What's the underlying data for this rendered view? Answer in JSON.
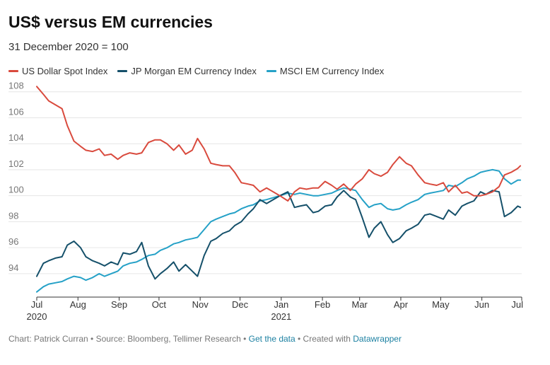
{
  "title": "US$ versus EM currencies",
  "subtitle": "31 December 2020 = 100",
  "footer": {
    "prefix": "Chart: Patrick Curran • Source: Bloomberg, Tellimer Research • ",
    "get_data": "Get the data",
    "middle": " • Created with ",
    "tool": "Datawrapper"
  },
  "colors": {
    "usd": "#d94a3d",
    "jpm": "#15506a",
    "msci": "#25a1c7",
    "grid": "#e6e6e6",
    "axis": "#333333"
  },
  "chart_data": {
    "type": "line",
    "x_axis": {
      "ticks": [
        {
          "date": "2020-07",
          "label": "Jul",
          "sub": "2020"
        },
        {
          "date": "2020-08",
          "label": "Aug"
        },
        {
          "date": "2020-09",
          "label": "Sep"
        },
        {
          "date": "2020-10",
          "label": "Oct"
        },
        {
          "date": "2020-11",
          "label": "Nov"
        },
        {
          "date": "2020-12",
          "label": "Dec"
        },
        {
          "date": "2021-01",
          "label": "Jan",
          "sub": "2021"
        },
        {
          "date": "2021-02",
          "label": "Feb"
        },
        {
          "date": "2021-03",
          "label": "Mar"
        },
        {
          "date": "2021-04",
          "label": "Apr"
        },
        {
          "date": "2021-05",
          "label": "May"
        },
        {
          "date": "2021-06",
          "label": "Jun"
        },
        {
          "date": "2021-07",
          "label": "Jul"
        }
      ]
    },
    "y_axis": {
      "ticks": [
        94,
        96,
        98,
        100,
        102,
        104,
        106,
        108
      ],
      "ylim": [
        92.2,
        108.8
      ]
    },
    "grid": true,
    "legend_position": "top",
    "series": [
      {
        "name": "US Dollar Spot Index",
        "color": "#d94a3d",
        "points": [
          [
            "2020-07-01",
            108.4
          ],
          [
            "2020-07-06",
            107.8
          ],
          [
            "2020-07-10",
            107.3
          ],
          [
            "2020-07-15",
            107.0
          ],
          [
            "2020-07-20",
            106.7
          ],
          [
            "2020-07-24",
            105.4
          ],
          [
            "2020-07-29",
            104.2
          ],
          [
            "2020-08-03",
            103.8
          ],
          [
            "2020-08-07",
            103.5
          ],
          [
            "2020-08-12",
            103.4
          ],
          [
            "2020-08-17",
            103.6
          ],
          [
            "2020-08-21",
            103.1
          ],
          [
            "2020-08-26",
            103.2
          ],
          [
            "2020-08-31",
            102.8
          ],
          [
            "2020-09-04",
            103.1
          ],
          [
            "2020-09-09",
            103.3
          ],
          [
            "2020-09-14",
            103.2
          ],
          [
            "2020-09-18",
            103.3
          ],
          [
            "2020-09-23",
            104.1
          ],
          [
            "2020-09-28",
            104.3
          ],
          [
            "2020-10-02",
            104.3
          ],
          [
            "2020-10-07",
            104.0
          ],
          [
            "2020-10-12",
            103.5
          ],
          [
            "2020-10-16",
            103.9
          ],
          [
            "2020-10-21",
            103.2
          ],
          [
            "2020-10-26",
            103.5
          ],
          [
            "2020-10-30",
            104.4
          ],
          [
            "2020-11-04",
            103.6
          ],
          [
            "2020-11-09",
            102.5
          ],
          [
            "2020-11-13",
            102.4
          ],
          [
            "2020-11-18",
            102.3
          ],
          [
            "2020-11-23",
            102.3
          ],
          [
            "2020-11-27",
            101.8
          ],
          [
            "2020-12-02",
            101.0
          ],
          [
            "2020-12-07",
            100.9
          ],
          [
            "2020-12-11",
            100.8
          ],
          [
            "2020-12-16",
            100.3
          ],
          [
            "2020-12-21",
            100.6
          ],
          [
            "2020-12-31",
            100.0
          ],
          [
            "2021-01-06",
            99.6
          ],
          [
            "2021-01-11",
            100.3
          ],
          [
            "2021-01-15",
            100.6
          ],
          [
            "2021-01-20",
            100.5
          ],
          [
            "2021-01-25",
            100.6
          ],
          [
            "2021-01-29",
            100.6
          ],
          [
            "2021-02-03",
            101.1
          ],
          [
            "2021-02-08",
            100.8
          ],
          [
            "2021-02-12",
            100.5
          ],
          [
            "2021-02-17",
            100.9
          ],
          [
            "2021-02-22",
            100.4
          ],
          [
            "2021-02-26",
            100.9
          ],
          [
            "2021-03-03",
            101.3
          ],
          [
            "2021-03-08",
            102.0
          ],
          [
            "2021-03-12",
            101.7
          ],
          [
            "2021-03-17",
            101.5
          ],
          [
            "2021-03-22",
            101.8
          ],
          [
            "2021-03-26",
            102.4
          ],
          [
            "2021-03-31",
            103.0
          ],
          [
            "2021-04-05",
            102.5
          ],
          [
            "2021-04-09",
            102.3
          ],
          [
            "2021-04-14",
            101.6
          ],
          [
            "2021-04-19",
            101.0
          ],
          [
            "2021-04-23",
            100.9
          ],
          [
            "2021-04-28",
            100.8
          ],
          [
            "2021-05-03",
            101.0
          ],
          [
            "2021-05-07",
            100.3
          ],
          [
            "2021-05-12",
            100.8
          ],
          [
            "2021-05-17",
            100.2
          ],
          [
            "2021-05-21",
            100.3
          ],
          [
            "2021-05-26",
            100.0
          ],
          [
            "2021-05-31",
            100.0
          ],
          [
            "2021-06-04",
            100.1
          ],
          [
            "2021-06-09",
            100.3
          ],
          [
            "2021-06-14",
            100.7
          ],
          [
            "2021-06-18",
            101.6
          ],
          [
            "2021-06-23",
            101.8
          ],
          [
            "2021-06-28",
            102.1
          ],
          [
            "2021-06-30",
            102.3
          ]
        ]
      },
      {
        "name": "JP Morgan EM Currency Index",
        "color": "#15506a",
        "points": [
          [
            "2020-07-01",
            93.8
          ],
          [
            "2020-07-06",
            94.8
          ],
          [
            "2020-07-10",
            95.0
          ],
          [
            "2020-07-15",
            95.2
          ],
          [
            "2020-07-20",
            95.3
          ],
          [
            "2020-07-24",
            96.2
          ],
          [
            "2020-07-29",
            96.5
          ],
          [
            "2020-08-03",
            96.0
          ],
          [
            "2020-08-07",
            95.3
          ],
          [
            "2020-08-12",
            95.0
          ],
          [
            "2020-08-17",
            94.8
          ],
          [
            "2020-08-21",
            94.6
          ],
          [
            "2020-08-26",
            94.9
          ],
          [
            "2020-08-31",
            94.7
          ],
          [
            "2020-09-04",
            95.6
          ],
          [
            "2020-09-09",
            95.5
          ],
          [
            "2020-09-14",
            95.7
          ],
          [
            "2020-09-18",
            96.4
          ],
          [
            "2020-09-23",
            94.6
          ],
          [
            "2020-09-28",
            93.6
          ],
          [
            "2020-10-02",
            94.0
          ],
          [
            "2020-10-07",
            94.4
          ],
          [
            "2020-10-12",
            94.9
          ],
          [
            "2020-10-16",
            94.2
          ],
          [
            "2020-10-21",
            94.7
          ],
          [
            "2020-10-26",
            94.2
          ],
          [
            "2020-10-30",
            93.8
          ],
          [
            "2020-11-04",
            95.4
          ],
          [
            "2020-11-09",
            96.5
          ],
          [
            "2020-11-13",
            96.7
          ],
          [
            "2020-11-18",
            97.1
          ],
          [
            "2020-11-23",
            97.3
          ],
          [
            "2020-11-27",
            97.7
          ],
          [
            "2020-12-02",
            98.0
          ],
          [
            "2020-12-07",
            98.6
          ],
          [
            "2020-12-11",
            99.0
          ],
          [
            "2020-12-16",
            99.7
          ],
          [
            "2020-12-21",
            99.4
          ],
          [
            "2020-12-31",
            100.0
          ],
          [
            "2021-01-06",
            100.3
          ],
          [
            "2021-01-11",
            99.1
          ],
          [
            "2021-01-15",
            99.2
          ],
          [
            "2021-01-20",
            99.3
          ],
          [
            "2021-01-25",
            98.7
          ],
          [
            "2021-01-29",
            98.8
          ],
          [
            "2021-02-03",
            99.2
          ],
          [
            "2021-02-08",
            99.3
          ],
          [
            "2021-02-12",
            99.9
          ],
          [
            "2021-02-17",
            100.4
          ],
          [
            "2021-02-22",
            99.9
          ],
          [
            "2021-02-26",
            99.7
          ],
          [
            "2021-03-03",
            98.3
          ],
          [
            "2021-03-08",
            96.8
          ],
          [
            "2021-03-12",
            97.5
          ],
          [
            "2021-03-17",
            98.0
          ],
          [
            "2021-03-22",
            97.0
          ],
          [
            "2021-03-26",
            96.4
          ],
          [
            "2021-03-31",
            96.7
          ],
          [
            "2021-04-05",
            97.3
          ],
          [
            "2021-04-09",
            97.5
          ],
          [
            "2021-04-14",
            97.8
          ],
          [
            "2021-04-19",
            98.5
          ],
          [
            "2021-04-23",
            98.6
          ],
          [
            "2021-04-28",
            98.4
          ],
          [
            "2021-05-03",
            98.2
          ],
          [
            "2021-05-07",
            98.9
          ],
          [
            "2021-05-12",
            98.5
          ],
          [
            "2021-05-17",
            99.2
          ],
          [
            "2021-05-21",
            99.4
          ],
          [
            "2021-05-26",
            99.6
          ],
          [
            "2021-05-31",
            100.3
          ],
          [
            "2021-06-04",
            100.1
          ],
          [
            "2021-06-09",
            100.4
          ],
          [
            "2021-06-14",
            100.3
          ],
          [
            "2021-06-18",
            98.4
          ],
          [
            "2021-06-23",
            98.7
          ],
          [
            "2021-06-28",
            99.2
          ],
          [
            "2021-06-30",
            99.1
          ]
        ]
      },
      {
        "name": "MSCI EM Currency Index",
        "color": "#25a1c7",
        "points": [
          [
            "2020-07-01",
            92.6
          ],
          [
            "2020-07-06",
            93.0
          ],
          [
            "2020-07-10",
            93.2
          ],
          [
            "2020-07-15",
            93.3
          ],
          [
            "2020-07-20",
            93.4
          ],
          [
            "2020-07-24",
            93.6
          ],
          [
            "2020-07-29",
            93.8
          ],
          [
            "2020-08-03",
            93.7
          ],
          [
            "2020-08-07",
            93.5
          ],
          [
            "2020-08-12",
            93.7
          ],
          [
            "2020-08-17",
            94.0
          ],
          [
            "2020-08-21",
            93.8
          ],
          [
            "2020-08-26",
            94.0
          ],
          [
            "2020-08-31",
            94.2
          ],
          [
            "2020-09-04",
            94.6
          ],
          [
            "2020-09-09",
            94.8
          ],
          [
            "2020-09-14",
            94.9
          ],
          [
            "2020-09-18",
            95.1
          ],
          [
            "2020-09-23",
            95.4
          ],
          [
            "2020-09-28",
            95.5
          ],
          [
            "2020-10-02",
            95.8
          ],
          [
            "2020-10-07",
            96.0
          ],
          [
            "2020-10-12",
            96.3
          ],
          [
            "2020-10-16",
            96.4
          ],
          [
            "2020-10-21",
            96.6
          ],
          [
            "2020-10-26",
            96.7
          ],
          [
            "2020-10-30",
            96.8
          ],
          [
            "2020-11-04",
            97.4
          ],
          [
            "2020-11-09",
            98.0
          ],
          [
            "2020-11-13",
            98.2
          ],
          [
            "2020-11-18",
            98.4
          ],
          [
            "2020-11-23",
            98.6
          ],
          [
            "2020-11-27",
            98.7
          ],
          [
            "2020-12-02",
            99.0
          ],
          [
            "2020-12-07",
            99.2
          ],
          [
            "2020-12-11",
            99.3
          ],
          [
            "2020-12-16",
            99.6
          ],
          [
            "2020-12-21",
            99.7
          ],
          [
            "2020-12-31",
            100.0
          ],
          [
            "2021-01-06",
            100.2
          ],
          [
            "2021-01-11",
            100.1
          ],
          [
            "2021-01-15",
            100.2
          ],
          [
            "2021-01-20",
            100.1
          ],
          [
            "2021-01-25",
            100.0
          ],
          [
            "2021-01-29",
            100.0
          ],
          [
            "2021-02-03",
            100.1
          ],
          [
            "2021-02-08",
            100.2
          ],
          [
            "2021-02-12",
            100.4
          ],
          [
            "2021-02-17",
            100.6
          ],
          [
            "2021-02-22",
            100.5
          ],
          [
            "2021-02-26",
            100.4
          ],
          [
            "2021-03-03",
            99.7
          ],
          [
            "2021-03-08",
            99.1
          ],
          [
            "2021-03-12",
            99.3
          ],
          [
            "2021-03-17",
            99.4
          ],
          [
            "2021-03-22",
            99.0
          ],
          [
            "2021-03-26",
            98.9
          ],
          [
            "2021-03-31",
            99.0
          ],
          [
            "2021-04-05",
            99.3
          ],
          [
            "2021-04-09",
            99.5
          ],
          [
            "2021-04-14",
            99.7
          ],
          [
            "2021-04-19",
            100.1
          ],
          [
            "2021-04-23",
            100.2
          ],
          [
            "2021-04-28",
            100.3
          ],
          [
            "2021-05-03",
            100.4
          ],
          [
            "2021-05-07",
            100.8
          ],
          [
            "2021-05-12",
            100.7
          ],
          [
            "2021-05-17",
            101.0
          ],
          [
            "2021-05-21",
            101.3
          ],
          [
            "2021-05-26",
            101.5
          ],
          [
            "2021-05-31",
            101.8
          ],
          [
            "2021-06-04",
            101.9
          ],
          [
            "2021-06-09",
            102.0
          ],
          [
            "2021-06-14",
            101.9
          ],
          [
            "2021-06-18",
            101.3
          ],
          [
            "2021-06-23",
            100.9
          ],
          [
            "2021-06-28",
            101.2
          ],
          [
            "2021-06-30",
            101.2
          ]
        ]
      }
    ]
  }
}
